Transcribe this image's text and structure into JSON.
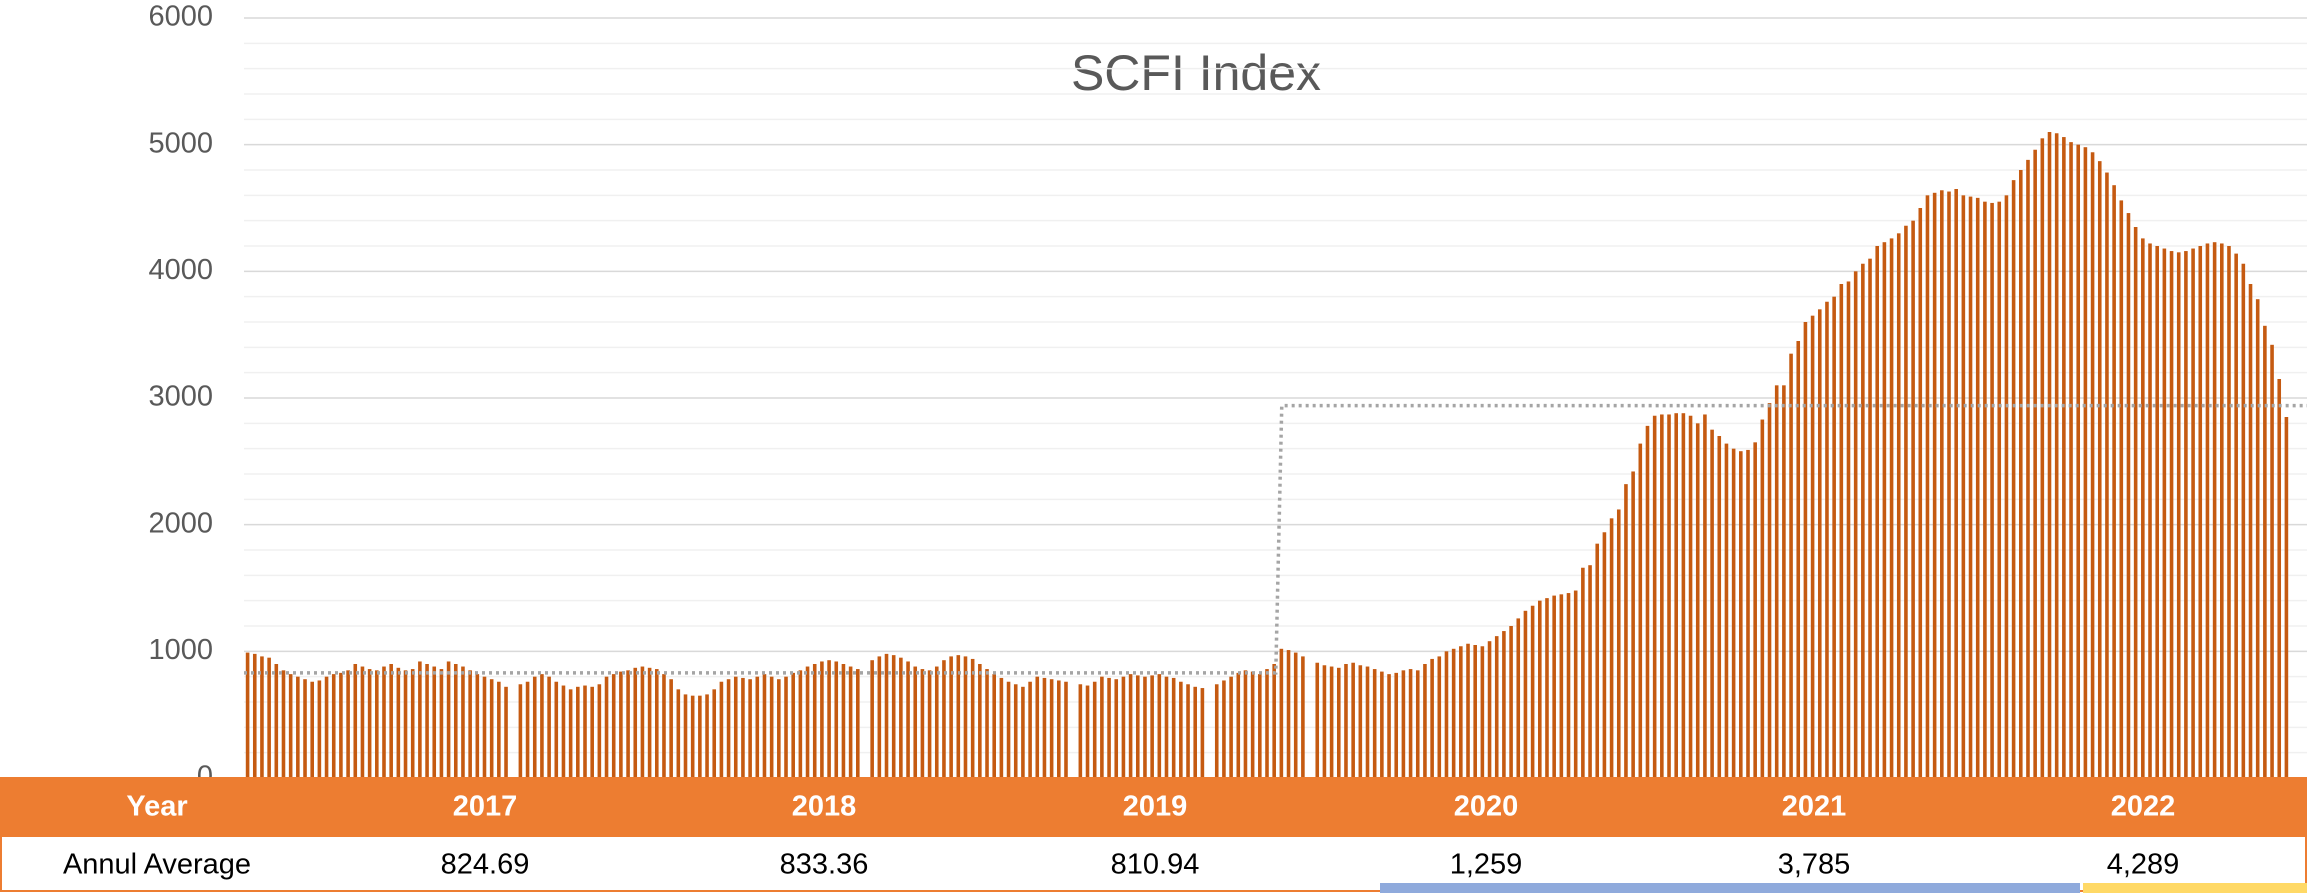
{
  "chart_data": {
    "type": "bar",
    "title": "SCFI Index",
    "color": "#c55a11",
    "ylim": [
      0,
      6000
    ],
    "yticks": [
      0,
      1000,
      2000,
      3000,
      4000,
      5000,
      6000
    ],
    "minor_yticks": [
      200,
      400,
      600,
      800,
      1200,
      1400,
      1600,
      1800,
      2200,
      2400,
      2600,
      2800,
      3200,
      3400,
      3600,
      3800,
      4200,
      4400,
      4600,
      4800,
      5200,
      5400,
      5600,
      5800
    ],
    "grid": true,
    "values": [
      990,
      980,
      960,
      950,
      900,
      850,
      820,
      800,
      780,
      760,
      770,
      800,
      820,
      830,
      850,
      900,
      880,
      860,
      850,
      880,
      900,
      870,
      850,
      860,
      920,
      900,
      880,
      860,
      920,
      900,
      880,
      850,
      820,
      800,
      780,
      760,
      720,
      null,
      740,
      760,
      800,
      820,
      800,
      760,
      730,
      700,
      720,
      730,
      720,
      740,
      800,
      820,
      840,
      850,
      870,
      880,
      870,
      860,
      820,
      780,
      700,
      660,
      650,
      650,
      660,
      700,
      760,
      780,
      800,
      790,
      780,
      800,
      820,
      800,
      780,
      800,
      830,
      850,
      880,
      900,
      920,
      930,
      920,
      900,
      880,
      860,
      null,
      930,
      960,
      980,
      970,
      950,
      920,
      880,
      860,
      850,
      880,
      930,
      960,
      970,
      960,
      940,
      900,
      860,
      820,
      790,
      760,
      740,
      720,
      760,
      800,
      790,
      780,
      770,
      760,
      null,
      740,
      730,
      760,
      800,
      790,
      780,
      800,
      820,
      810,
      800,
      810,
      820,
      800,
      790,
      760,
      740,
      720,
      710,
      null,
      740,
      770,
      800,
      830,
      850,
      840,
      820,
      860,
      900,
      1020,
      1010,
      990,
      960,
      null,
      910,
      890,
      880,
      870,
      900,
      910,
      890,
      880,
      860,
      840,
      820,
      830,
      850,
      860,
      850,
      900,
      940,
      960,
      1000,
      1020,
      1040,
      1060,
      1050,
      1040,
      1080,
      1120,
      1160,
      1200,
      1260,
      1320,
      1360,
      1400,
      1420,
      1440,
      1450,
      1460,
      1480,
      1660,
      1680,
      1850,
      1940,
      2050,
      2120,
      2320,
      2420,
      2640,
      2780,
      2860,
      2870,
      2870,
      2880,
      2880,
      2860,
      2800,
      2870,
      2750,
      2700,
      2640,
      2600,
      2580,
      2590,
      2650,
      2830,
      2960,
      3100,
      3100,
      3350,
      3450,
      3600,
      3650,
      3700,
      3760,
      3800,
      3900,
      3920,
      4000,
      4060,
      4100,
      4200,
      4230,
      4260,
      4300,
      4360,
      4400,
      4500,
      4600,
      4620,
      4640,
      4630,
      4650,
      4600,
      4590,
      4580,
      4550,
      4540,
      4550,
      4600,
      4720,
      4800,
      4880,
      4960,
      5050,
      5100,
      5090,
      5060,
      5020,
      5000,
      4980,
      4940,
      4870,
      4780,
      4680,
      4560,
      4460,
      4350,
      4260,
      4220,
      4200,
      4180,
      4160,
      4150,
      4160,
      4180,
      4200,
      4220,
      4230,
      4220,
      4200,
      4140,
      4060,
      3900,
      3780,
      3570,
      3420,
      3150,
      2850
    ],
    "step_line": {
      "values": [
        830,
        2940
      ],
      "break_index": 144,
      "color": "#a5a5a5"
    }
  },
  "table": {
    "header": [
      "Year",
      "2017",
      "2018",
      "2019",
      "2020",
      "2021",
      "2022"
    ],
    "rows": [
      [
        "Annul Average",
        "824.69",
        "833.36",
        "810.94",
        "1,259",
        "3,785",
        "4,289"
      ]
    ]
  }
}
